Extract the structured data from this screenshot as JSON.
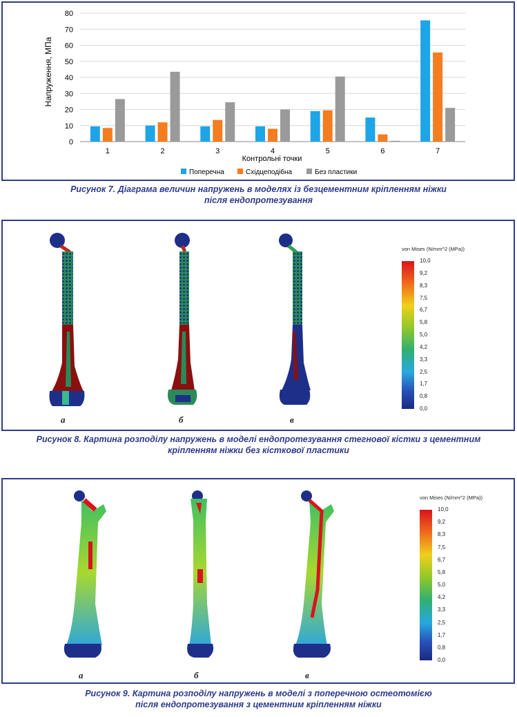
{
  "chart_data": {
    "type": "bar",
    "categories": [
      "1",
      "2",
      "3",
      "4",
      "5",
      "6",
      "7"
    ],
    "series": [
      {
        "name": "Поперечна",
        "color": "#1da5e8",
        "values": [
          9.5,
          10,
          9.5,
          9.5,
          19,
          15,
          75.5
        ]
      },
      {
        "name": "Східцеподібна",
        "color": "#f47d20",
        "values": [
          8.5,
          12,
          13.5,
          8,
          19.5,
          4.5,
          55.5
        ]
      },
      {
        "name": "Без пластики",
        "color": "#9a9a9a",
        "values": [
          26.5,
          43.5,
          24.5,
          20,
          40.5,
          0.5,
          21
        ]
      }
    ],
    "yticks": [
      "0",
      "10",
      "20",
      "30",
      "40",
      "50",
      "60",
      "70",
      "80"
    ],
    "ylim": [
      0,
      80
    ],
    "xlabel": "Контрольні точки",
    "ylabel": "Напруження, МПа",
    "legend_position": "bottom",
    "grid": true
  },
  "captions": {
    "fig7": [
      "Рисунок 7. Діаграма величин напружень в моделях із безцементним кріпленням ніжки",
      "після ендопротезування"
    ],
    "fig8": [
      "Рисунок 8. Картина розподілу напружень в моделі ендопротезування стегнової кістки з цементним",
      "кріпленням ніжки без кісткової пластики"
    ],
    "fig9": [
      "Рисунок 9. Картина розподілу напружень в моделі з поперечною остеотомією",
      "після ендопротезування з цементним кріпленням ніжки"
    ]
  },
  "scale": {
    "title": "von Mises (N/mm^2 (MPa))",
    "labels": [
      "10,0",
      "9,2",
      "8,3",
      "7,5",
      "6,7",
      "5,8",
      "5,0",
      "4,2",
      "3,3",
      "2,5",
      "1,7",
      "0,8",
      "0,0"
    ],
    "colors": [
      "#d8141c",
      "#e8401c",
      "#f0781c",
      "#f0b81c",
      "#e8e01c",
      "#a8d020",
      "#58b830",
      "#30b060",
      "#30b8b0",
      "#28a8e0",
      "#2870d0",
      "#2040a8",
      "#1a2a80"
    ]
  },
  "fig8": {
    "labels": [
      "а",
      "б",
      "в"
    ]
  },
  "fig9": {
    "labels": [
      "а",
      "б",
      "в"
    ]
  }
}
